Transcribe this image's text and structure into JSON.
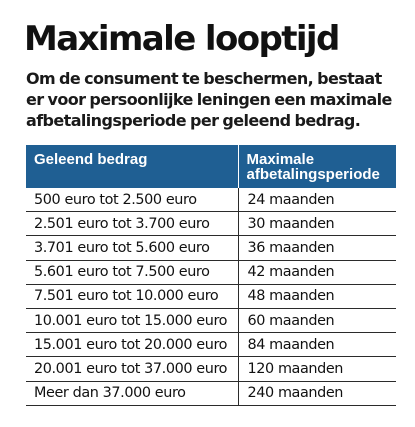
{
  "title": "Maximale looptijd",
  "intro": {
    "line1": "Om de consument te beschermen, bestaat",
    "line2": "er voor persoonlijke leningen een maximale",
    "line3": "afbetalingsperiode per geleend bedrag."
  },
  "table": {
    "header": {
      "col1": "Geleend bedrag",
      "col2_line1": "Maximale",
      "col2_line2": "afbetalingsperiode"
    },
    "header_color": "#1f5f93",
    "rows": [
      {
        "amount": "500 euro tot 2.500 euro",
        "period": "24 maanden"
      },
      {
        "amount": "2.501 euro tot 3.700 euro",
        "period": "30 maanden"
      },
      {
        "amount": "3.701 euro tot 5.600 euro",
        "period": "36 maanden"
      },
      {
        "amount": "5.601 euro tot 7.500 euro",
        "period": "42 maanden"
      },
      {
        "amount": "7.501 euro tot 10.000 euro",
        "period": "48 maanden"
      },
      {
        "amount": "10.001 euro tot 15.000 euro",
        "period": "60 maanden"
      },
      {
        "amount": "15.001 euro tot 20.000 euro",
        "period": "84 maanden"
      },
      {
        "amount": "20.001 euro tot 37.000 euro",
        "period": "120 maanden"
      },
      {
        "amount": "Meer dan 37.000 euro",
        "period": "240 maanden"
      }
    ]
  }
}
